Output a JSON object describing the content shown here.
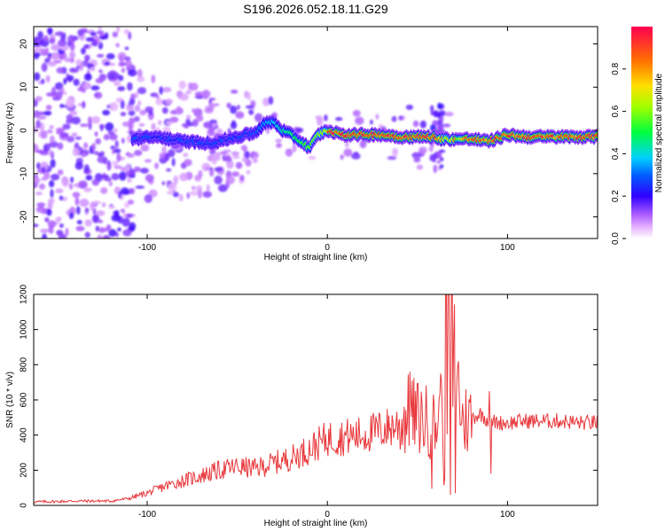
{
  "chart_data": [
    {
      "type": "heatmap",
      "title": "S196.2026.052.18.11.G29",
      "xlabel": "Height of straight line (km)",
      "ylabel": "Frequency (Hz)",
      "xlim": [
        -163,
        150
      ],
      "ylim": [
        -25,
        24
      ],
      "xticks": [
        -100,
        0,
        100
      ],
      "yticks": [
        -20,
        -10,
        0,
        10,
        20
      ],
      "colorbar": {
        "label": "Normalized spectral amplitude",
        "range": [
          0,
          1
        ],
        "ticks": [
          0.0,
          0.2,
          0.4,
          0.6,
          0.8
        ],
        "tick_labels": [
          "0.0",
          "0.2",
          "0.4",
          "0.6",
          "0.8"
        ],
        "colormap": [
          "#ffffff",
          "#c070ff",
          "#6000ff",
          "#0000ff",
          "#00c8ff",
          "#00ff60",
          "#aaff00",
          "#ffd000",
          "#ff6000",
          "#ff0050"
        ]
      },
      "ridge": {
        "description": "dominant frequency ridge near 0 Hz",
        "x": [
          -108,
          -95,
          -80,
          -65,
          -50,
          -40,
          -35,
          -30,
          -25,
          -20,
          -15,
          -10,
          -5,
          0,
          10,
          20,
          30,
          40,
          50,
          60,
          62,
          65,
          70,
          80,
          90,
          100,
          110,
          120,
          130,
          150
        ],
        "y": [
          -2,
          -1.5,
          -2.5,
          -3,
          -1.5,
          -0.5,
          1.5,
          2,
          0,
          -1,
          -2.5,
          -4,
          -1,
          0,
          -1,
          -1,
          -1,
          -1.5,
          -1.5,
          -1.5,
          -2,
          -2,
          -2,
          -2,
          -2.5,
          -1,
          -1.5,
          -1.5,
          -1.5,
          -1.5
        ]
      }
    },
    {
      "type": "line",
      "xlabel": "Height of straight line (km)",
      "ylabel": "SNR (10 * v/v)",
      "xlim": [
        -163,
        150
      ],
      "ylim": [
        0,
        1200
      ],
      "xticks": [
        -100,
        0,
        100
      ],
      "yticks": [
        0,
        200,
        400,
        600,
        800,
        1000,
        1200
      ],
      "color": "#e8383c",
      "series": [
        {
          "name": "SNR",
          "x": [
            -163,
            -150,
            -140,
            -130,
            -120,
            -110,
            -100,
            -90,
            -80,
            -70,
            -60,
            -50,
            -40,
            -30,
            -20,
            -10,
            0,
            10,
            20,
            30,
            40,
            45,
            50,
            55,
            60,
            63,
            65,
            67,
            70,
            75,
            80,
            85,
            90,
            95,
            100,
            110,
            120,
            130,
            140,
            150
          ],
          "values": [
            20,
            22,
            25,
            25,
            25,
            40,
            70,
            110,
            140,
            170,
            200,
            220,
            210,
            240,
            270,
            320,
            380,
            390,
            400,
            430,
            460,
            520,
            500,
            480,
            450,
            520,
            460,
            1200,
            900,
            480,
            500,
            520,
            480,
            470,
            470,
            480,
            480,
            480,
            470,
            470
          ]
        }
      ]
    }
  ]
}
